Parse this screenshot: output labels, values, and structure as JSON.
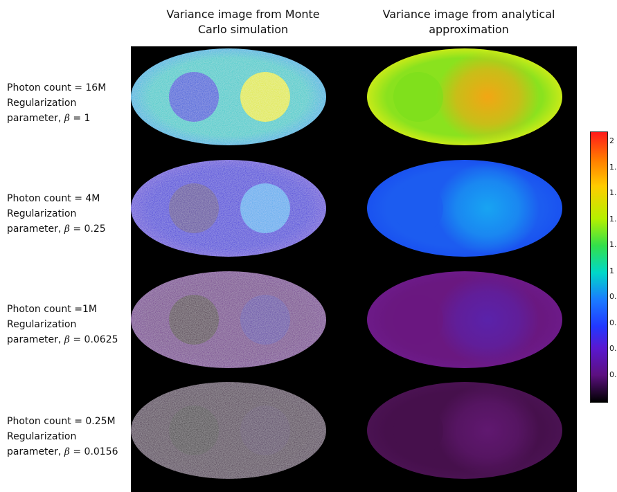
{
  "columns": [
    {
      "title_line1": "Variance image from Monte",
      "title_line2": "Carlo simulation"
    },
    {
      "title_line1": "Variance image from analytical",
      "title_line2": "approximation"
    }
  ],
  "rows": [
    {
      "line1": "Photon count = 16M",
      "line2": "Regularization",
      "line3_prefix": "parameter, ",
      "beta": "β",
      "line3_value": " = 1"
    },
    {
      "line1": "Photon count = 4M",
      "line2": "Regularization",
      "line3_prefix": "parameter, ",
      "beta": "β",
      "line3_value": " = 0.25"
    },
    {
      "line1": "Photon count =1M",
      "line2": "Regularization",
      "line3_prefix": "parameter, ",
      "beta": "β",
      "line3_value": " = 0.0625"
    },
    {
      "line1": "Photon count = 0.25M",
      "line2": "Regularization",
      "line3_prefix": "parameter, ",
      "beta": "β",
      "line3_value": " = 0.0156"
    }
  ],
  "colorbar": {
    "ticks": [
      "2",
      "1.",
      "1.",
      "1.",
      "1.",
      "1",
      "0.",
      "0.",
      "0.",
      "0."
    ]
  },
  "images": [
    {
      "mc": {
        "body": "#1ec8c8",
        "left": "#1f4ed8",
        "right": "#dfe82a",
        "edge": "#1cb0e0"
      },
      "an": {
        "body": "#8ae21e",
        "left": "#7ae01a",
        "right": "#f2a614",
        "edge": "#c8ea18"
      }
    },
    {
      "mc": {
        "body": "#3220d8",
        "left": "#4a2a9a",
        "right": "#4aa6ee",
        "edge": "#5a3cd8"
      },
      "an": {
        "body": "#1c5cf0",
        "left": "#1c5cf0",
        "right": "#18a4f2",
        "edge": "#1a52f0"
      }
    },
    {
      "mc": {
        "body": "#6a1c86",
        "left": "#3c1238",
        "right": "#5224a0",
        "edge": "#6e1e8c"
      },
      "an": {
        "body": "#6a1880",
        "left": "#6a1880",
        "right": "#5a22aa",
        "edge": "#6c1a88"
      }
    },
    {
      "mc": {
        "body": "#3a0c3e",
        "left": "#1e0820",
        "right": "#3e1050",
        "edge": "#3c0e42"
      },
      "an": {
        "body": "#46104c",
        "left": "#46104c",
        "right": "#601870",
        "edge": "#4a1252"
      }
    }
  ]
}
